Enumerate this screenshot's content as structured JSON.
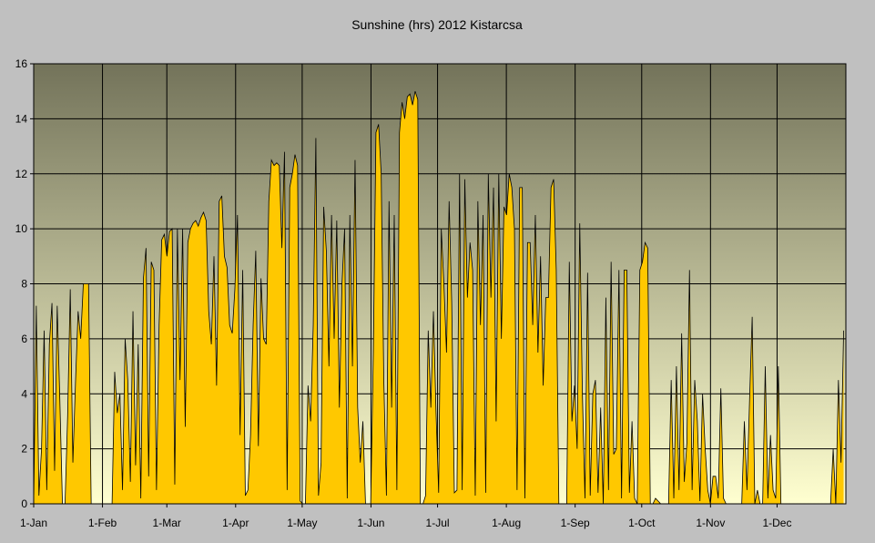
{
  "chart_data": {
    "type": "area",
    "title": "Sunshine (hrs) 2012 Kistarcsa",
    "xlabel": "",
    "ylabel": "",
    "ylim": [
      0,
      16
    ],
    "yticks": [
      0,
      2,
      4,
      6,
      8,
      10,
      12,
      14,
      16
    ],
    "xlim": [
      "2012-01-01",
      "2012-12-31"
    ],
    "xticks": [
      "1-Jan",
      "1-Feb",
      "1-Mar",
      "1-Apr",
      "1-May",
      "1-Jun",
      "1-Jul",
      "1-Aug",
      "1-Sep",
      "1-Oct",
      "1-Nov",
      "1-Dec"
    ],
    "grid": true,
    "legend": "none",
    "colors": {
      "fill": "#ffc800",
      "line": "#000000",
      "plot_top": "#73735a",
      "plot_bottom": "#ffffd0",
      "background": "#c0c0c0"
    },
    "series": [
      {
        "color": "#ffc800",
        "values": [
          0.0,
          7.2,
          0.3,
          2.0,
          6.3,
          0.5,
          5.8,
          7.3,
          1.2,
          7.2,
          3.8,
          0.0,
          0.0,
          3.2,
          7.8,
          1.5,
          4.4,
          7.0,
          6.0,
          8.0,
          8.0,
          8.0,
          0.0,
          0.0,
          0.0,
          0.0,
          0.0,
          0.0,
          0.0,
          0.0,
          0.0,
          4.8,
          3.3,
          4.0,
          0.5,
          6.0,
          4.5,
          0.8,
          7.0,
          1.4,
          5.8,
          0.2,
          8.2,
          9.3,
          1.0,
          8.8,
          8.5,
          0.5,
          6.5,
          9.6,
          9.8,
          9.0,
          9.9,
          10.0,
          0.7,
          10.0,
          4.5,
          10.0,
          2.8,
          9.5,
          10.0,
          10.2,
          10.3,
          10.1,
          10.4,
          10.6,
          10.3,
          7.0,
          5.8,
          9.0,
          4.3,
          11.0,
          11.2,
          9.0,
          8.6,
          6.5,
          6.2,
          7.8,
          10.5,
          2.5,
          8.5,
          0.3,
          0.5,
          2.5,
          6.5,
          9.2,
          2.1,
          8.2,
          6.0,
          5.8,
          11.0,
          12.5,
          12.3,
          12.4,
          12.3,
          9.3,
          12.8,
          0.5,
          11.5,
          12.0,
          12.7,
          12.3,
          0.1,
          0.0,
          0.0,
          4.3,
          3.0,
          6.5,
          13.3,
          0.3,
          1.5,
          10.8,
          9.2,
          5.0,
          10.5,
          6.0,
          10.3,
          3.5,
          8.0,
          10.0,
          0.2,
          10.5,
          5.0,
          12.5,
          3.5,
          1.5,
          3.0,
          0.0,
          0.0,
          0.0,
          5.5,
          13.5,
          13.8,
          12.0,
          4.5,
          0.3,
          11.0,
          3.5,
          10.5,
          0.5,
          13.5,
          14.6,
          14.0,
          14.8,
          14.9,
          14.5,
          15.0,
          14.7,
          0.0,
          0.0,
          0.3,
          6.3,
          3.5,
          7.0,
          3.3,
          0.4,
          10.0,
          8.0,
          5.5,
          11.0,
          7.3,
          0.4,
          0.5,
          12.0,
          0.5,
          11.8,
          7.5,
          9.5,
          8.5,
          0.3,
          11.0,
          6.5,
          10.5,
          0.4,
          12.0,
          7.5,
          11.5,
          3.0,
          12.0,
          6.0,
          10.8,
          10.5,
          12.0,
          11.5,
          10.0,
          0.5,
          11.5,
          11.5,
          0.2,
          9.5,
          9.5,
          6.5,
          10.5,
          5.5,
          9.0,
          4.3,
          7.5,
          7.5,
          11.5,
          11.8,
          8.5,
          0.0,
          0.0,
          0.0,
          0.0,
          8.8,
          3.0,
          4.3,
          2.0,
          10.2,
          4.0,
          0.2,
          8.4,
          0.3,
          4.0,
          4.5,
          0.4,
          3.5,
          0.0,
          7.5,
          0.5,
          8.8,
          1.8,
          2.0,
          8.5,
          0.2,
          8.5,
          8.5,
          0.4,
          3.0,
          0.2,
          0.0,
          8.5,
          8.8,
          9.5,
          9.3,
          0.0,
          0.0,
          0.2,
          0.1,
          0.0,
          0.0,
          0.0,
          0.0,
          4.5,
          0.2,
          5.0,
          0.5,
          6.2,
          0.8,
          2.2,
          8.5,
          0.5,
          4.5,
          3.0,
          0.1,
          4.0,
          2.0,
          0.5,
          0.0,
          1.0,
          1.0,
          0.2,
          4.2,
          0.2,
          0.0,
          0.0,
          0.0,
          0.0,
          0.0,
          0.0,
          0.0,
          3.0,
          0.5,
          3.8,
          6.8,
          0.0,
          0.5,
          0.0,
          0.0,
          5.0,
          0.2,
          2.5,
          0.5,
          0.2,
          5.0,
          0.0,
          0.0,
          0.0,
          0.0,
          0.0,
          0.0,
          0.0,
          0.0,
          0.0,
          0.0,
          0.0,
          0.0,
          0.0,
          0.0,
          0.0,
          0.0,
          0.0,
          0.0,
          0.0,
          0.0,
          2.0,
          0.0,
          4.5,
          1.5,
          6.3
        ]
      }
    ]
  }
}
